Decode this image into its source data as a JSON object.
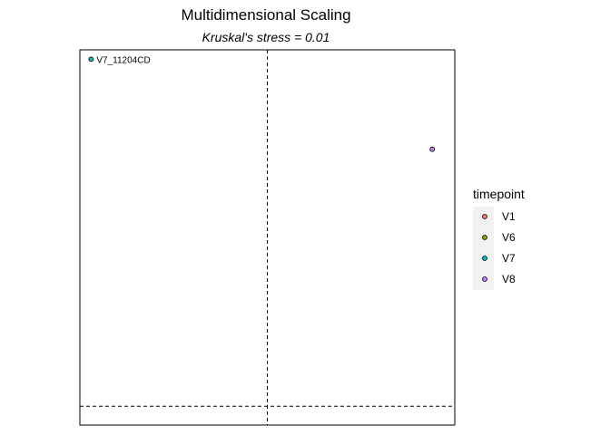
{
  "chart_data": {
    "type": "scatter",
    "title": "Multidimensional Scaling",
    "subtitle": "Kruskal's stress = 0.01",
    "xlabel": "",
    "ylabel": "",
    "xlim": [
      -1.0,
      1.0
    ],
    "ylim": [
      -1.0,
      1.0
    ],
    "grid": false,
    "reference_lines": {
      "x": 0,
      "y": -0.9
    },
    "points": [
      {
        "x": -0.94,
        "y": 0.95,
        "group": "V7",
        "label": "V7_11204CD"
      },
      {
        "x": 0.88,
        "y": 0.47,
        "group": "V8",
        "label": ""
      }
    ],
    "legend": {
      "title": "timepoint",
      "placement": "right",
      "entries": [
        {
          "label": "V1",
          "color": "#F8766D"
        },
        {
          "label": "V6",
          "color": "#7CAE00"
        },
        {
          "label": "V7",
          "color": "#00BFC4"
        },
        {
          "label": "V8",
          "color": "#C77CFF"
        }
      ]
    }
  }
}
